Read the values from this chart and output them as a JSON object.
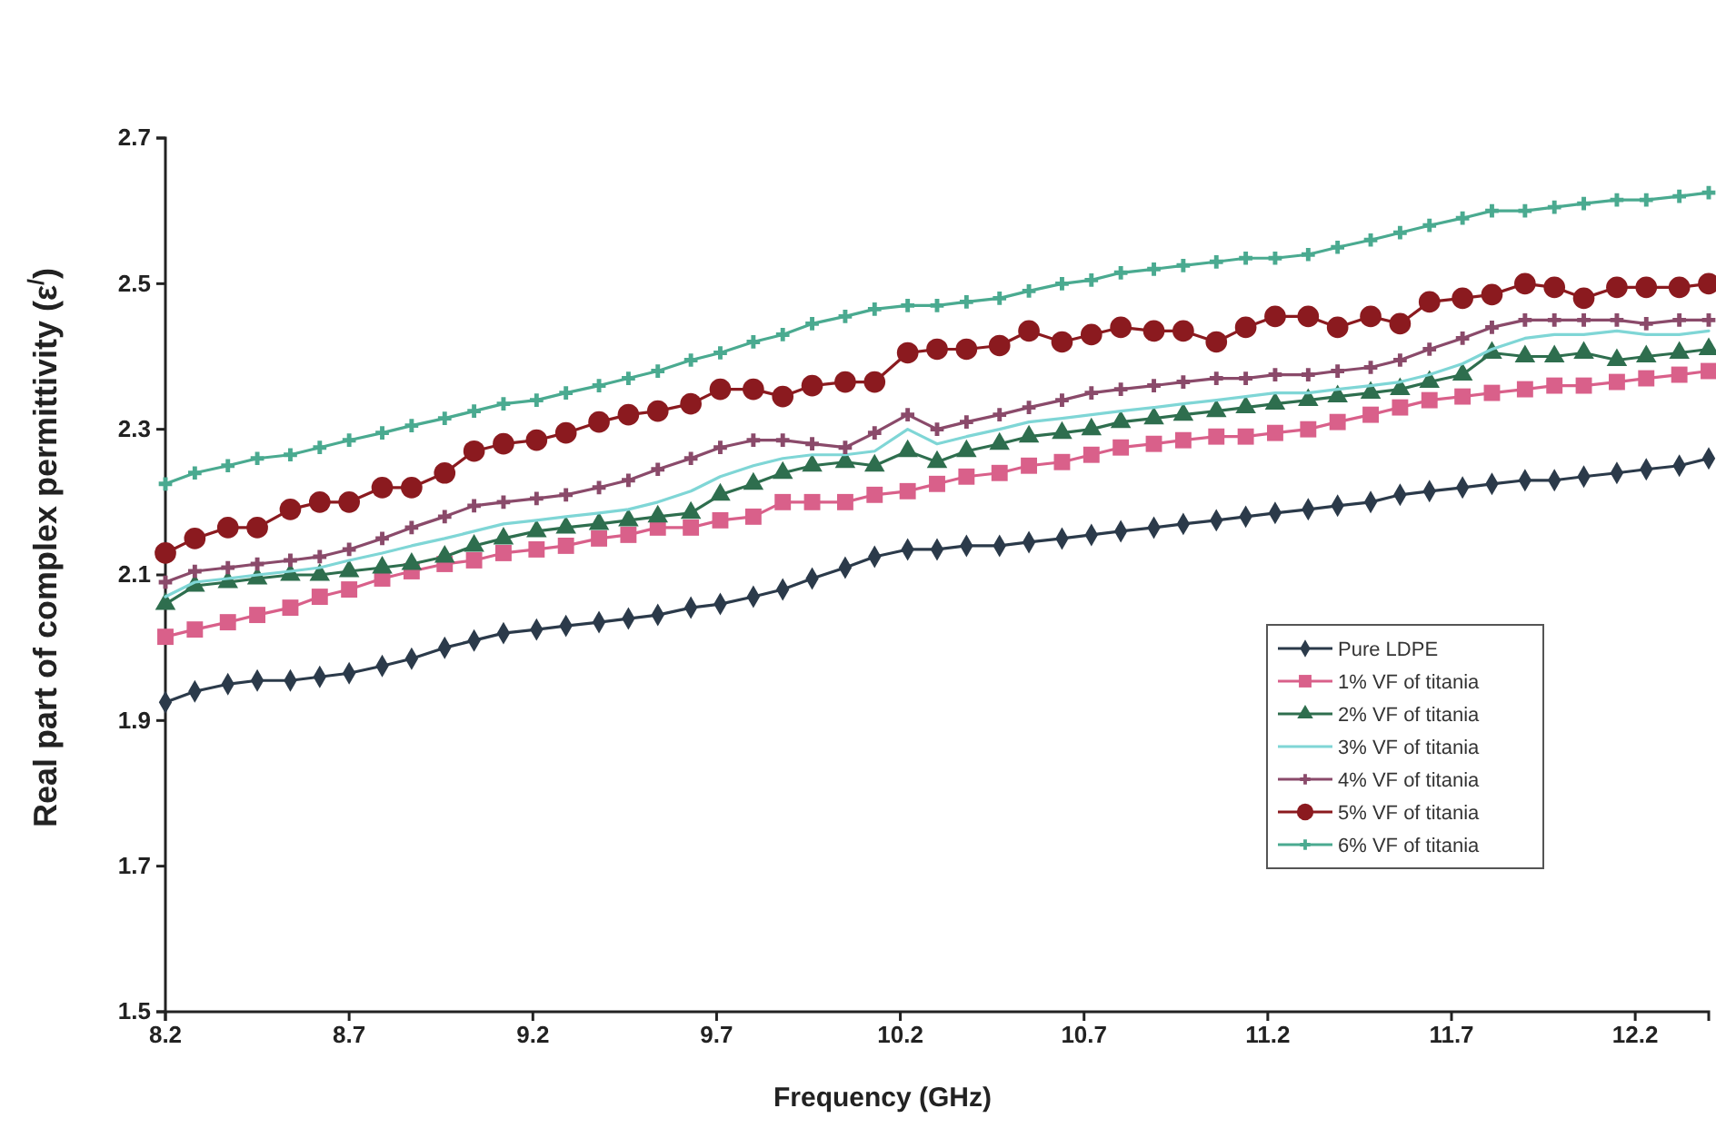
{
  "chart_data": {
    "type": "line",
    "xlabel": "Frequency (GHz)",
    "ylabel": "Real part of complex permittivity (ε$^{/}$)",
    "x": [
      8.2,
      8.28,
      8.37,
      8.45,
      8.54,
      8.62,
      8.7,
      8.79,
      8.87,
      8.96,
      9.04,
      9.12,
      9.21,
      9.29,
      9.38,
      9.46,
      9.54,
      9.63,
      9.71,
      9.8,
      9.88,
      9.96,
      10.05,
      10.13,
      10.22,
      10.3,
      10.38,
      10.47,
      10.55,
      10.64,
      10.72,
      10.8,
      10.89,
      10.97,
      11.06,
      11.14,
      11.22,
      11.31,
      11.39,
      11.48,
      11.56,
      11.64,
      11.73,
      11.81,
      11.9,
      11.98,
      12.06,
      12.15,
      12.23,
      12.32,
      12.4
    ],
    "xlim": [
      8.2,
      12.4
    ],
    "xticks": [
      8.2,
      8.7,
      9.2,
      9.7,
      10.2,
      10.7,
      11.2,
      11.7,
      12.2
    ],
    "ylim": [
      1.5,
      2.7
    ],
    "yticks": [
      1.5,
      1.7,
      1.9,
      2.1,
      2.3,
      2.5,
      2.7
    ],
    "grid": false,
    "legend": "bottom right",
    "line_style": "solid",
    "series": [
      {
        "name": "Pure LDPE",
        "color": "#2b3a4a",
        "marker": "diamond",
        "values": [
          1.925,
          1.94,
          1.95,
          1.955,
          1.955,
          1.96,
          1.965,
          1.975,
          1.985,
          2.0,
          2.01,
          2.02,
          2.025,
          2.03,
          2.035,
          2.04,
          2.045,
          2.055,
          2.06,
          2.07,
          2.08,
          2.095,
          2.11,
          2.125,
          2.135,
          2.135,
          2.14,
          2.14,
          2.145,
          2.15,
          2.155,
          2.16,
          2.165,
          2.17,
          2.175,
          2.18,
          2.185,
          2.19,
          2.195,
          2.2,
          2.21,
          2.215,
          2.22,
          2.225,
          2.23,
          2.23,
          2.235,
          2.24,
          2.245,
          2.25,
          2.26
        ]
      },
      {
        "name": "1% VF of titania",
        "color": "#d9608a",
        "marker": "square",
        "values": [
          2.015,
          2.025,
          2.035,
          2.045,
          2.055,
          2.07,
          2.08,
          2.095,
          2.105,
          2.115,
          2.12,
          2.13,
          2.135,
          2.14,
          2.15,
          2.155,
          2.165,
          2.165,
          2.175,
          2.18,
          2.2,
          2.2,
          2.2,
          2.21,
          2.215,
          2.225,
          2.235,
          2.24,
          2.25,
          2.255,
          2.265,
          2.275,
          2.28,
          2.285,
          2.29,
          2.29,
          2.295,
          2.3,
          2.31,
          2.32,
          2.33,
          2.34,
          2.345,
          2.35,
          2.355,
          2.36,
          2.36,
          2.365,
          2.37,
          2.375,
          2.38
        ]
      },
      {
        "name": "2% VF of titania",
        "color": "#2e6e4e",
        "marker": "triangle",
        "values": [
          2.06,
          2.085,
          2.09,
          2.095,
          2.1,
          2.1,
          2.105,
          2.11,
          2.115,
          2.125,
          2.14,
          2.15,
          2.16,
          2.165,
          2.17,
          2.175,
          2.18,
          2.185,
          2.21,
          2.225,
          2.24,
          2.25,
          2.255,
          2.25,
          2.27,
          2.255,
          2.27,
          2.28,
          2.29,
          2.295,
          2.3,
          2.31,
          2.315,
          2.32,
          2.325,
          2.33,
          2.335,
          2.34,
          2.345,
          2.35,
          2.355,
          2.365,
          2.375,
          2.405,
          2.4,
          2.4,
          2.405,
          2.395,
          2.4,
          2.405,
          2.41
        ]
      },
      {
        "name": "3% VF of titania",
        "color": "#7fd6d6",
        "marker": "none",
        "values": [
          2.07,
          2.09,
          2.095,
          2.1,
          2.105,
          2.11,
          2.12,
          2.13,
          2.14,
          2.15,
          2.16,
          2.17,
          2.175,
          2.18,
          2.185,
          2.19,
          2.2,
          2.215,
          2.235,
          2.25,
          2.26,
          2.265,
          2.265,
          2.27,
          2.3,
          2.28,
          2.29,
          2.3,
          2.31,
          2.315,
          2.32,
          2.325,
          2.33,
          2.335,
          2.34,
          2.345,
          2.35,
          2.35,
          2.355,
          2.36,
          2.365,
          2.375,
          2.39,
          2.41,
          2.425,
          2.43,
          2.43,
          2.435,
          2.43,
          2.43,
          2.435
        ]
      },
      {
        "name": "4% VF of titania",
        "color": "#8a4a6a",
        "marker": "cross",
        "values": [
          2.09,
          2.105,
          2.11,
          2.115,
          2.12,
          2.125,
          2.135,
          2.15,
          2.165,
          2.18,
          2.195,
          2.2,
          2.205,
          2.21,
          2.22,
          2.23,
          2.245,
          2.26,
          2.275,
          2.285,
          2.285,
          2.28,
          2.275,
          2.295,
          2.32,
          2.3,
          2.31,
          2.32,
          2.33,
          2.34,
          2.35,
          2.355,
          2.36,
          2.365,
          2.37,
          2.37,
          2.375,
          2.375,
          2.38,
          2.385,
          2.395,
          2.41,
          2.425,
          2.44,
          2.45,
          2.45,
          2.45,
          2.45,
          2.445,
          2.45,
          2.45
        ]
      },
      {
        "name": "5% VF of titania",
        "color": "#8b1a1f",
        "marker": "circle",
        "values": [
          2.13,
          2.15,
          2.165,
          2.165,
          2.19,
          2.2,
          2.2,
          2.22,
          2.22,
          2.24,
          2.27,
          2.28,
          2.285,
          2.295,
          2.31,
          2.32,
          2.325,
          2.335,
          2.355,
          2.355,
          2.345,
          2.36,
          2.365,
          2.365,
          2.405,
          2.41,
          2.41,
          2.415,
          2.435,
          2.42,
          2.43,
          2.44,
          2.435,
          2.435,
          2.42,
          2.44,
          2.455,
          2.455,
          2.44,
          2.455,
          2.445,
          2.475,
          2.48,
          2.485,
          2.5,
          2.495,
          2.48,
          2.495,
          2.495,
          2.495,
          2.5
        ]
      },
      {
        "name": "6% VF of titania",
        "color": "#4aaa90",
        "marker": "cross",
        "values": [
          2.225,
          2.24,
          2.25,
          2.26,
          2.265,
          2.275,
          2.285,
          2.295,
          2.305,
          2.315,
          2.325,
          2.335,
          2.34,
          2.35,
          2.36,
          2.37,
          2.38,
          2.395,
          2.405,
          2.42,
          2.43,
          2.445,
          2.455,
          2.465,
          2.47,
          2.47,
          2.475,
          2.48,
          2.49,
          2.5,
          2.505,
          2.515,
          2.52,
          2.525,
          2.53,
          2.535,
          2.535,
          2.54,
          2.55,
          2.56,
          2.57,
          2.58,
          2.59,
          2.6,
          2.6,
          2.605,
          2.61,
          2.615,
          2.615,
          2.62,
          2.625
        ]
      }
    ]
  }
}
